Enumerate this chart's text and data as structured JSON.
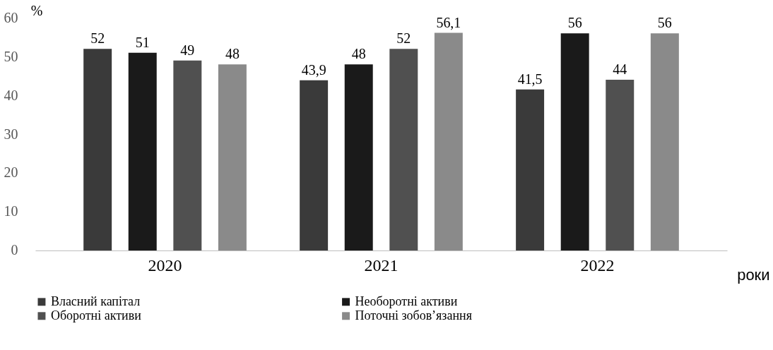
{
  "chart_data": {
    "type": "bar",
    "ylabel": "%",
    "xlabel": "роки",
    "categories": [
      "2020",
      "2021",
      "2022"
    ],
    "series": [
      {
        "name": "Власний капітал",
        "color": "#3a3a3a",
        "values": [
          52,
          43.9,
          41.5
        ],
        "value_labels": [
          "52",
          "43,9",
          "41,5"
        ]
      },
      {
        "name": "Необоротні активи",
        "color": "#1a1a1a",
        "values": [
          51,
          48,
          56
        ],
        "value_labels": [
          "51",
          "48",
          "56"
        ]
      },
      {
        "name": "Оборотні активи",
        "color": "#505050",
        "values": [
          49,
          52,
          44
        ],
        "value_labels": [
          "49",
          "52",
          "44"
        ]
      },
      {
        "name": "Поточні зобов’язання",
        "color": "#8a8a8a",
        "values": [
          48,
          56.1,
          56
        ],
        "value_labels": [
          "48",
          "56,1",
          "56"
        ]
      }
    ],
    "ylim": [
      0,
      60
    ],
    "yticks": [
      0,
      10,
      20,
      30,
      40,
      50,
      60
    ],
    "grid": false,
    "legend": "bottom"
  }
}
